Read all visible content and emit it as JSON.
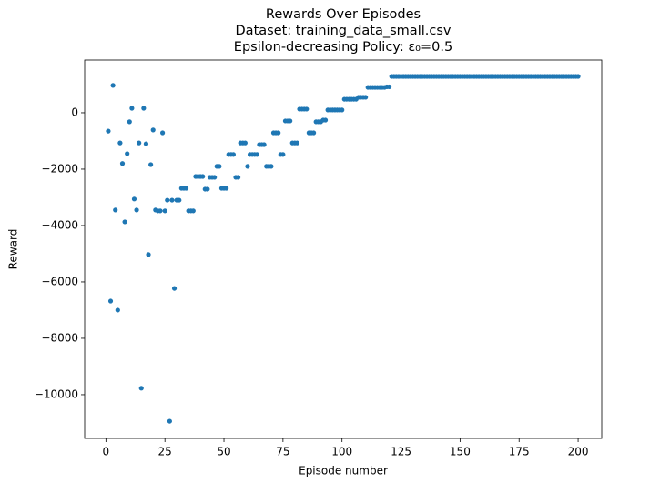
{
  "chart_data": {
    "type": "scatter",
    "title": "Rewards Over Episodes",
    "subtitle": [
      "Dataset: training_data_small.csv",
      "Epsilon-decreasing Policy: ε₀=0.5"
    ],
    "x_label": "Episode number",
    "y_label": "Reward",
    "color": "#1f77b4",
    "x": [
      1,
      2,
      3,
      4,
      5,
      6,
      7,
      8,
      9,
      10,
      11,
      12,
      13,
      14,
      15,
      16,
      17,
      18,
      19,
      20,
      21,
      22,
      23,
      24,
      25,
      26,
      27,
      28,
      29,
      30,
      31,
      32,
      33,
      34,
      35,
      36,
      37,
      38,
      39,
      40,
      41,
      42,
      43,
      44,
      45,
      46,
      47,
      48,
      49,
      50,
      51,
      52,
      53,
      54,
      55,
      56,
      57,
      58,
      59,
      60,
      61,
      62,
      63,
      64,
      65,
      66,
      67,
      68,
      69,
      70,
      71,
      72,
      73,
      74,
      75,
      76,
      77,
      78,
      79,
      80,
      81,
      82,
      83,
      84,
      85,
      86,
      87,
      88,
      89,
      90,
      91,
      92,
      93,
      94,
      95,
      96,
      97,
      98,
      99,
      100,
      101,
      102,
      103,
      104,
      105,
      106,
      107,
      108,
      109,
      110,
      111,
      112,
      113,
      114,
      115,
      116,
      117,
      118,
      119,
      120,
      121,
      122,
      123,
      124,
      125,
      126,
      127,
      128,
      129,
      130,
      131,
      132,
      133,
      134,
      135,
      136,
      137,
      138,
      139,
      140,
      141,
      142,
      143,
      144,
      145,
      146,
      147,
      148,
      149,
      150,
      151,
      152,
      153,
      154,
      155,
      156,
      157,
      158,
      159,
      160,
      161,
      162,
      163,
      164,
      165,
      166,
      167,
      168,
      169,
      170,
      171,
      172,
      173,
      174,
      175,
      176,
      177,
      178,
      179,
      180,
      181,
      182,
      183,
      184,
      185,
      186,
      187,
      188,
      189,
      190,
      191,
      192,
      193,
      194,
      195,
      196,
      197,
      198,
      199,
      200
    ],
    "values": [
      -650,
      -6680,
      970,
      -3450,
      -7000,
      -1070,
      -1800,
      -3870,
      -1450,
      -320,
      160,
      -3060,
      -3450,
      -1070,
      -9770,
      160,
      -1100,
      -5030,
      -1840,
      -610,
      -3450,
      -3480,
      -3480,
      -710,
      -3480,
      -3100,
      -10940,
      -3100,
      -6230,
      -3100,
      -3100,
      -2680,
      -2680,
      -2680,
      -3480,
      -3480,
      -3480,
      -2260,
      -2260,
      -2260,
      -2260,
      -2710,
      -2710,
      -2290,
      -2290,
      -2290,
      -1900,
      -1900,
      -2680,
      -2680,
      -2680,
      -1480,
      -1480,
      -1480,
      -2290,
      -2290,
      -1070,
      -1070,
      -1070,
      -1900,
      -1480,
      -1480,
      -1480,
      -1480,
      -1130,
      -1130,
      -1130,
      -1900,
      -1900,
      -1900,
      -710,
      -710,
      -710,
      -1480,
      -1480,
      -290,
      -290,
      -290,
      -1070,
      -1070,
      -1070,
      130,
      130,
      130,
      130,
      -710,
      -710,
      -710,
      -320,
      -320,
      -320,
      -260,
      -260,
      100,
      100,
      100,
      100,
      100,
      100,
      100,
      480,
      480,
      480,
      480,
      480,
      480,
      550,
      550,
      550,
      550,
      900,
      900,
      900,
      900,
      900,
      900,
      900,
      900,
      920,
      920,
      1290,
      1290,
      1290,
      1290,
      1290,
      1290,
      1290,
      1290,
      1290,
      1290,
      1290,
      1290,
      1290,
      1290,
      1290,
      1290,
      1290,
      1290,
      1290,
      1290,
      1290,
      1290,
      1290,
      1290,
      1290,
      1290,
      1290,
      1290,
      1290,
      1290,
      1290,
      1290,
      1290,
      1290,
      1290,
      1290,
      1290,
      1290,
      1290,
      1290,
      1290,
      1290,
      1290,
      1290,
      1290,
      1290,
      1290,
      1290,
      1290,
      1290,
      1290,
      1290,
      1290,
      1290,
      1290,
      1290,
      1290,
      1290,
      1290,
      1290,
      1290,
      1290,
      1290,
      1290,
      1290,
      1290,
      1290,
      1290,
      1290,
      1290,
      1290,
      1290,
      1290,
      1290,
      1290,
      1290,
      1290,
      1290,
      1290,
      1290
    ],
    "xlim": [
      -9,
      210
    ],
    "ylim": [
      -11550,
      1870
    ],
    "xticks": [
      0,
      25,
      50,
      75,
      100,
      125,
      150,
      175,
      200
    ],
    "yticks": [
      {
        "value": -10000,
        "label": "−10000"
      },
      {
        "value": -8000,
        "label": "−8000"
      },
      {
        "value": -6000,
        "label": "−6000"
      },
      {
        "value": -4000,
        "label": "−4000"
      },
      {
        "value": -2000,
        "label": "−2000"
      },
      0
    ]
  }
}
